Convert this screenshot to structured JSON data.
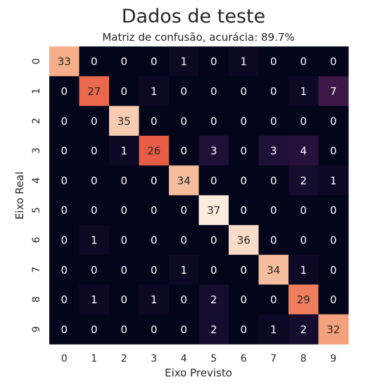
{
  "chart_data": {
    "type": "heatmap",
    "title": "Dados de teste",
    "subtitle": "Matriz de confusão, acurácia: 89.7%",
    "xlabel": "Eixo Previsto",
    "ylabel": "Eixo Real",
    "x_categories": [
      "0",
      "1",
      "2",
      "3",
      "4",
      "5",
      "6",
      "7",
      "8",
      "9"
    ],
    "y_categories": [
      "0",
      "1",
      "2",
      "3",
      "4",
      "5",
      "6",
      "7",
      "8",
      "9"
    ],
    "values": [
      [
        33,
        0,
        0,
        0,
        1,
        0,
        1,
        0,
        0,
        0
      ],
      [
        0,
        27,
        0,
        1,
        0,
        0,
        0,
        0,
        1,
        7
      ],
      [
        0,
        0,
        35,
        0,
        0,
        0,
        0,
        0,
        0,
        0
      ],
      [
        0,
        0,
        1,
        26,
        0,
        3,
        0,
        3,
        4,
        0
      ],
      [
        0,
        0,
        0,
        0,
        34,
        0,
        0,
        0,
        2,
        1
      ],
      [
        0,
        0,
        0,
        0,
        0,
        37,
        0,
        0,
        0,
        0
      ],
      [
        0,
        1,
        0,
        0,
        0,
        0,
        36,
        0,
        0,
        0
      ],
      [
        0,
        0,
        0,
        0,
        1,
        0,
        0,
        34,
        1,
        0
      ],
      [
        0,
        1,
        0,
        1,
        0,
        2,
        0,
        0,
        29,
        0
      ],
      [
        0,
        0,
        0,
        0,
        0,
        2,
        0,
        1,
        2,
        32
      ]
    ],
    "colormap": "rocket",
    "value_range": [
      0,
      37
    ],
    "colorbar": false,
    "grid": false,
    "legend": "none"
  }
}
